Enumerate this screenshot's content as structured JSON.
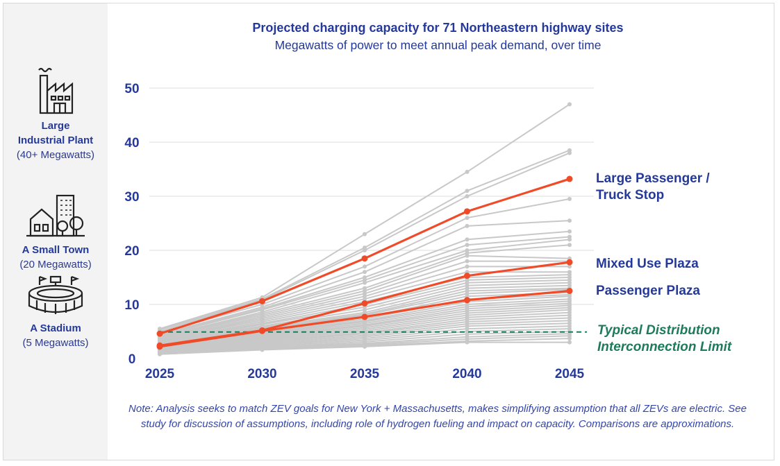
{
  "chart_data": {
    "type": "line",
    "title": "Projected charging capacity for 71 Northeastern highway sites",
    "subtitle": "Megawatts of power to meet annual peak demand, over time",
    "x": [
      2025,
      2030,
      2035,
      2040,
      2045
    ],
    "yticks": [
      0,
      10,
      20,
      30,
      40,
      50
    ],
    "ylim": [
      0,
      50
    ],
    "grid": true,
    "highlight_color": "#ef4b28",
    "background_color": "#c8c8c8",
    "label_color": "#24399a",
    "highlight_series": [
      {
        "name": "Large Passenger / Truck Stop",
        "name_lines": [
          "Large Passenger /",
          "Truck Stop"
        ],
        "values": [
          4.6,
          10.6,
          18.5,
          27.2,
          33.2
        ]
      },
      {
        "name": "Mixed Use Plaza",
        "name_lines": [
          "Mixed Use Plaza"
        ],
        "values": [
          2.4,
          5.2,
          10.2,
          15.3,
          17.8
        ]
      },
      {
        "name": "Passenger Plaza",
        "name_lines": [
          "Passenger Plaza"
        ],
        "values": [
          2.2,
          5.1,
          7.7,
          10.8,
          12.5
        ]
      }
    ],
    "background_series": [
      [
        5.5,
        11.3,
        23.0,
        34.5,
        47.0
      ],
      [
        5.3,
        11.0,
        20.5,
        31.0,
        38.5
      ],
      [
        5.0,
        10.8,
        20.0,
        30.0,
        38.0
      ],
      [
        4.8,
        10.0,
        17.0,
        26.0,
        29.5
      ],
      [
        4.5,
        9.5,
        16.0,
        24.5,
        25.5
      ],
      [
        4.4,
        9.2,
        15.0,
        22.0,
        23.5
      ],
      [
        4.2,
        9.0,
        14.5,
        21.0,
        22.5
      ],
      [
        4.0,
        8.6,
        14.0,
        20.0,
        22.0
      ],
      [
        3.9,
        8.3,
        13.0,
        19.5,
        21.0
      ],
      [
        3.8,
        8.0,
        12.5,
        19.0,
        18.5
      ],
      [
        3.6,
        7.7,
        12.0,
        18.0,
        18.0
      ],
      [
        3.5,
        7.4,
        11.5,
        17.0,
        17.0
      ],
      [
        3.4,
        7.1,
        11.0,
        16.0,
        16.0
      ],
      [
        3.2,
        6.8,
        10.5,
        15.0,
        15.5
      ],
      [
        3.1,
        6.5,
        10.0,
        14.5,
        15.0
      ],
      [
        3.0,
        6.3,
        9.5,
        14.0,
        14.5
      ],
      [
        2.9,
        6.0,
        9.0,
        13.5,
        14.0
      ],
      [
        2.8,
        5.8,
        8.5,
        13.0,
        13.5
      ],
      [
        2.7,
        5.6,
        8.2,
        12.5,
        13.0
      ],
      [
        2.6,
        5.4,
        8.0,
        12.0,
        12.8
      ],
      [
        2.5,
        5.2,
        7.6,
        11.5,
        12.2
      ],
      [
        2.4,
        5.0,
        7.3,
        11.0,
        11.8
      ],
      [
        2.3,
        4.8,
        7.0,
        10.5,
        11.5
      ],
      [
        2.2,
        4.6,
        6.8,
        10.0,
        11.0
      ],
      [
        2.1,
        4.4,
        6.5,
        9.6,
        10.6
      ],
      [
        2.0,
        4.2,
        6.2,
        9.2,
        10.2
      ],
      [
        1.9,
        4.0,
        6.0,
        8.8,
        9.8
      ],
      [
        1.8,
        3.8,
        5.7,
        8.4,
        9.4
      ],
      [
        1.7,
        3.6,
        5.4,
        8.0,
        9.0
      ],
      [
        1.6,
        3.4,
        5.1,
        7.6,
        8.5
      ],
      [
        1.5,
        3.2,
        4.8,
        7.2,
        8.0
      ],
      [
        1.4,
        3.0,
        4.6,
        6.8,
        7.5
      ],
      [
        1.3,
        2.8,
        4.3,
        6.4,
        7.0
      ],
      [
        1.2,
        2.6,
        4.0,
        6.0,
        6.5
      ],
      [
        1.1,
        2.4,
        3.7,
        5.5,
        6.0
      ],
      [
        1.0,
        2.2,
        3.4,
        5.0,
        5.5
      ],
      [
        1.0,
        2.0,
        3.1,
        4.5,
        5.0
      ],
      [
        0.9,
        1.9,
        2.8,
        4.0,
        4.6
      ],
      [
        0.9,
        1.8,
        2.6,
        3.6,
        4.2
      ],
      [
        0.8,
        1.7,
        2.4,
        3.2,
        3.7
      ],
      [
        0.8,
        1.6,
        2.2,
        3.0,
        3.0
      ]
    ],
    "reference_line": {
      "value": 4.9,
      "label_lines": [
        "Typical Distribution",
        "Interconnection Limit"
      ],
      "color": "#1e7a5c"
    }
  },
  "references": [
    {
      "icon": "factory-icon",
      "name_lines": [
        "Large",
        "Industrial Plant"
      ],
      "sub": "(40+ Megawatts)"
    },
    {
      "icon": "town-icon",
      "name_lines": [
        "A Small Town"
      ],
      "sub": "(20 Megawatts)"
    },
    {
      "icon": "stadium-icon",
      "name_lines": [
        "A Stadium"
      ],
      "sub": "(5 Megawatts)"
    }
  ],
  "note": "Note: Analysis seeks to match ZEV goals for New York + Massachusetts, makes simplifying assumption that all ZEVs are electric. See study for discussion of assumptions, including role of hydrogen fueling and impact on capacity. Comparisons are approximations."
}
